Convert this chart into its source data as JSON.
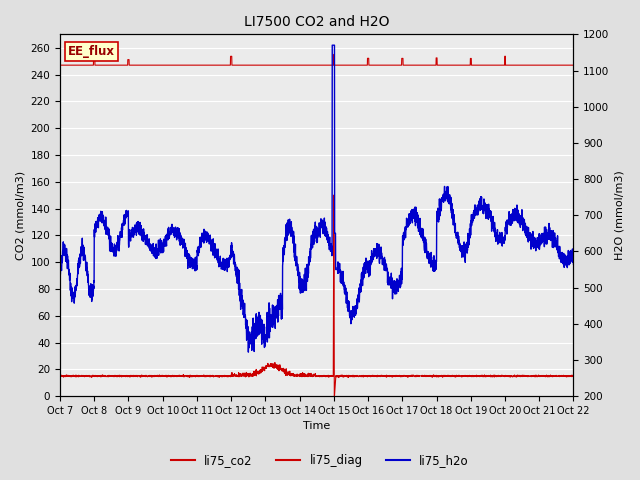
{
  "title": "LI7500 CO2 and H2O",
  "xlabel": "Time",
  "ylabel_left": "CO2 (mmol/m3)",
  "ylabel_right": "H2O (mmol/m3)",
  "ylim_left": [
    0,
    270
  ],
  "ylim_right": [
    200,
    1200
  ],
  "yticks_left": [
    0,
    20,
    40,
    60,
    80,
    100,
    120,
    140,
    160,
    180,
    200,
    220,
    240,
    260
  ],
  "yticks_right": [
    200,
    300,
    400,
    500,
    600,
    700,
    800,
    900,
    1000,
    1100,
    1200
  ],
  "xtick_labels": [
    "Oct 7",
    "Oct 8",
    "Oct 9",
    "Oct 10",
    "Oct 11",
    "Oct 12",
    "Oct 13",
    "Oct 14",
    "Oct 15",
    "Oct 16",
    "Oct 17",
    "Oct 18",
    "Oct 19",
    "Oct 20",
    "Oct 21",
    "Oct 22"
  ],
  "color_co2": "#cc0000",
  "color_diag": "#cc0000",
  "color_h2o": "#0000cc",
  "fig_bg": "#e0e0e0",
  "plot_bg": "#ebebeb",
  "grid_color": "#ffffff",
  "ee_flux_box_facecolor": "#ffffcc",
  "ee_flux_box_edgecolor": "#cc0000",
  "ee_flux_text_color": "#990000",
  "legend_labels": [
    "li75_co2",
    "li75_diag",
    "li75_h2o"
  ],
  "legend_colors": [
    "#cc0000",
    "#cc0000",
    "#0000cc"
  ]
}
